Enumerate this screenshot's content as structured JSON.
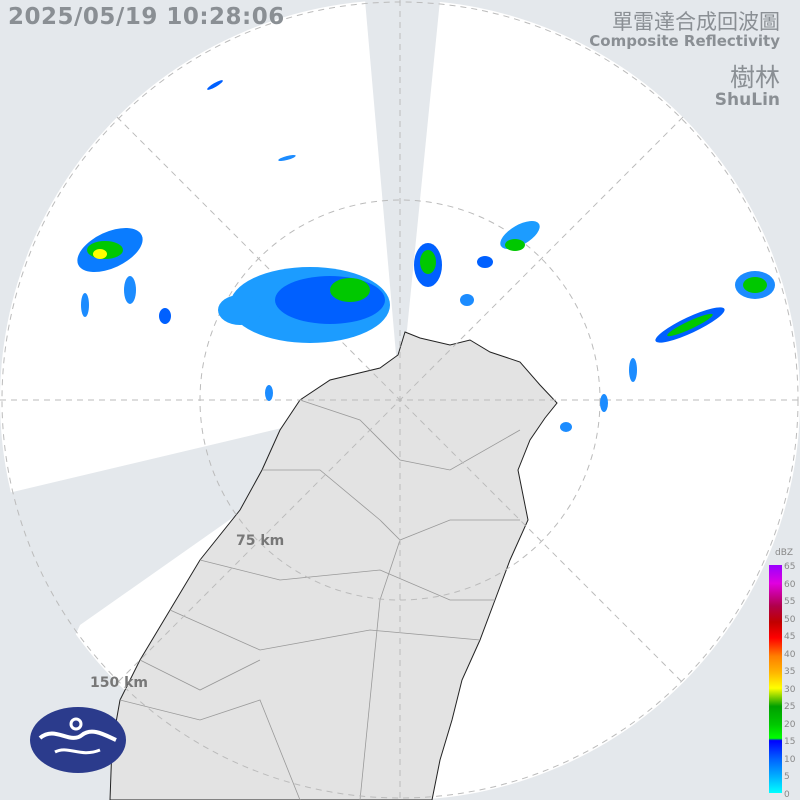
{
  "timestamp": "2025/05/19 10:28:06",
  "product": {
    "title_zh": "單雷達合成回波圖",
    "title_en": "Composite Reflectivity"
  },
  "station": {
    "name_zh": "樹林",
    "name_en": "ShuLin"
  },
  "range_rings": [
    {
      "label": "75 km"
    },
    {
      "label": "150 km"
    }
  ],
  "legend": {
    "unit": "dBZ",
    "ticks": [
      "65",
      "60",
      "55",
      "50",
      "45",
      "40",
      "35",
      "30",
      "25",
      "20",
      "15",
      "10",
      "5",
      "0"
    ]
  },
  "logo": {
    "icon": "cwa-logo-icon",
    "color": "#2b3b8c"
  },
  "colors": {
    "background": "#e4e8ec",
    "radar_area": "#ffffff",
    "land": "#e6e6e6",
    "blocked_sector": "#e4e8ec"
  }
}
